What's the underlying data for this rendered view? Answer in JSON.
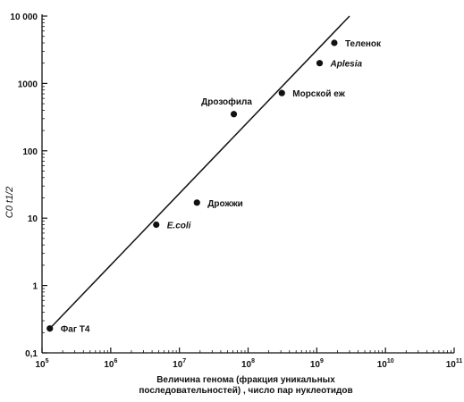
{
  "chart_data": {
    "type": "scatter",
    "title": "",
    "xscale": "log",
    "yscale": "log",
    "xlim": [
      100000,
      100000000000
    ],
    "ylim": [
      0.1,
      10000
    ],
    "grid": false,
    "xlabel_lines": [
      "Величина генома (фракция уникальных",
      "последовательностей) , число пар нуклеотидов"
    ],
    "ylabel": "C0 t1/2",
    "xticks": [
      {
        "base": "10",
        "exp": "5",
        "value": 100000
      },
      {
        "base": "10",
        "exp": "6",
        "value": 1000000
      },
      {
        "base": "10",
        "exp": "7",
        "value": 10000000
      },
      {
        "base": "10",
        "exp": "8",
        "value": 100000000
      },
      {
        "base": "10",
        "exp": "9",
        "value": 1000000000
      },
      {
        "base": "10",
        "exp": "10",
        "value": 10000000000
      },
      {
        "base": "10",
        "exp": "11",
        "value": 100000000000
      }
    ],
    "yticks": [
      {
        "label": "0,1",
        "value": 0.1
      },
      {
        "label": "1",
        "value": 1
      },
      {
        "label": "10",
        "value": 10
      },
      {
        "label": "100",
        "value": 100
      },
      {
        "label": "1000",
        "value": 1000
      },
      {
        "label": "10 000",
        "value": 10000
      }
    ],
    "points": [
      {
        "name": "Фаг Т4",
        "x": 130000,
        "y": 0.23,
        "italic": false,
        "label_side": "right"
      },
      {
        "name": "E.coli",
        "x": 4600000,
        "y": 8,
        "italic": true,
        "label_side": "right"
      },
      {
        "name": "Дрожжи",
        "x": 18000000,
        "y": 17,
        "italic": false,
        "label_side": "right"
      },
      {
        "name": "Дрозофила",
        "x": 62000000,
        "y": 350,
        "italic": false,
        "label_side": "above"
      },
      {
        "name": "Морской еж",
        "x": 310000000,
        "y": 720,
        "italic": false,
        "label_side": "right"
      },
      {
        "name": "Aplesia",
        "x": 1100000000,
        "y": 2000,
        "italic": true,
        "label_side": "right"
      },
      {
        "name": "Теленок",
        "x": 1800000000,
        "y": 4000,
        "italic": false,
        "label_side": "right"
      }
    ],
    "fit_line": {
      "x0": 130000,
      "y0": 0.23,
      "x1": 3000000000,
      "y1": 10000
    }
  }
}
